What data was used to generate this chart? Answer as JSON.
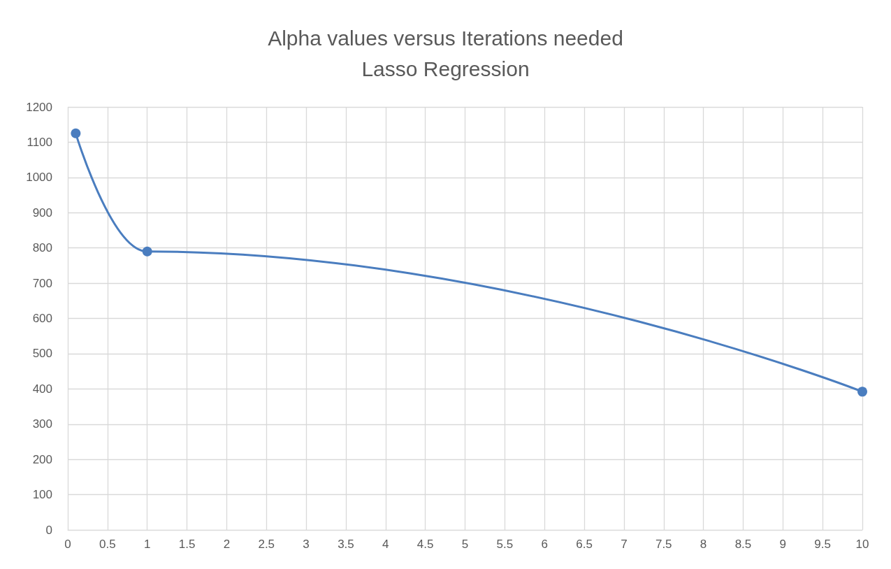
{
  "chart_data": {
    "type": "line",
    "title": "Alpha values versus Iterations needed",
    "subtitle": "Lasso Regression",
    "x": [
      0.1,
      1,
      10
    ],
    "series": [
      {
        "color": "#4a7dbf",
        "values": [
          1125,
          790,
          392
        ]
      }
    ],
    "xlim": [
      0,
      10
    ],
    "xticks": [
      0,
      0.5,
      1,
      1.5,
      2,
      2.5,
      3,
      3.5,
      4,
      4.5,
      5,
      5.5,
      6,
      6.5,
      7,
      7.5,
      8,
      8.5,
      9,
      9.5,
      10
    ],
    "ylim": [
      0,
      1200
    ],
    "yticks": [
      0,
      100,
      200,
      300,
      400,
      500,
      600,
      700,
      800,
      900,
      1000,
      1100,
      1200
    ],
    "grid": true,
    "marker": "circle",
    "line_style": "solid"
  }
}
